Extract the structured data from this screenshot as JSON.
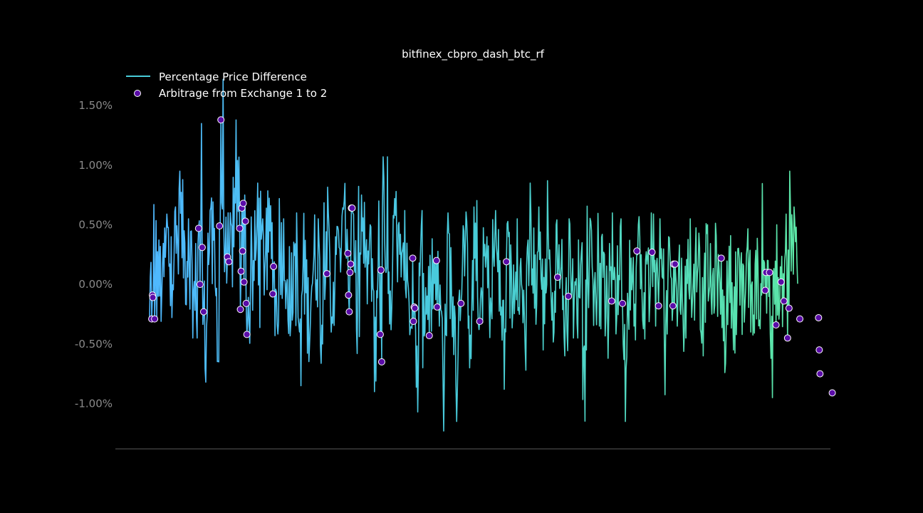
{
  "chart_data": {
    "type": "line",
    "title": "bitfinex_cbpro_dash_btc_rf",
    "xlabel": "",
    "ylabel": "",
    "ylim": [
      -1.38,
      1.77
    ],
    "y_ticks": [
      -1.0,
      -0.5,
      0.0,
      0.5,
      1.0,
      1.5
    ],
    "y_tick_labels": [
      "-1.00%",
      "-0.50%",
      "0.00%",
      "0.50%",
      "1.00%",
      "1.50%"
    ],
    "grid": false,
    "legend_position": "top-left",
    "legend": [
      "Percentage Price Difference",
      "Arbitrage from Exchange 1 to 2"
    ],
    "colors": {
      "background": "#000000",
      "line_start": "#4fb8ff",
      "line_mid": "#48ccd8",
      "line_end": "#5ce6a6",
      "marker_fill": "#5a0ca8",
      "marker_edge": "#ffffff",
      "axis": "#5a5a5a",
      "tick_text": "#8a8a8a"
    },
    "series": [
      {
        "name": "Percentage Price Difference",
        "type": "line",
        "n_points": 900,
        "anchor_values": [
          -0.29,
          0.67,
          -0.1,
          0.18,
          0.59,
          0.4,
          0.65,
          0.95,
          0.45,
          0.55,
          -0.45,
          1.35,
          -0.82,
          0.62,
          0.47,
          -0.65,
          1.72,
          0.25,
          0.49,
          1.38,
          1.7,
          0.75,
          -0.32,
          0.2,
          0.85,
          0.46,
          0.64,
          0.66,
          -0.43,
          0.72,
          0.55,
          -0.3,
          0.6,
          -0.85,
          0.37,
          -0.5,
          0.25,
          0.55,
          -0.5,
          1.23,
          -0.4,
          0.4,
          0.3,
          0.7,
          1.55,
          0.6,
          -0.58,
          0.75,
          0.27,
          0.5,
          -0.9,
          0.7,
          1.07,
          -0.2,
          0.78,
          0.42,
          0.62,
          -0.15,
          0.15,
          -1.07,
          0.62,
          -0.25,
          0.0,
          0.22,
          -0.35,
          -1.23,
          0.6,
          -0.44,
          -1.15,
          0.8,
          0.35,
          -0.7,
          0.65,
          -0.32,
          0.4,
          -0.2,
          0.62,
          0.2,
          -0.88,
          0.4,
          -0.2,
          0.55,
          0.0,
          -0.72,
          0.85,
          -0.2,
          0.65,
          -0.55,
          0.87,
          -0.3,
          0.5,
          0.06,
          -0.6,
          0.55,
          -0.45,
          0.35,
          -0.55,
          0.53,
          0.1,
          -0.35,
          0.27,
          -0.62,
          0.6,
          -0.28,
          0.55,
          -1.15,
          0.37,
          -0.35,
          0.5,
          -0.3,
          0.17,
          0.6,
          -0.35,
          0.55,
          -0.45,
          0.4,
          -0.35,
          0.22,
          -0.45,
          0.55,
          -0.3,
          0.43,
          -0.6,
          0.5,
          -0.25,
          0.41,
          -0.25,
          -0.74,
          0.32,
          -0.55,
          0.3,
          -0.42,
          0.25,
          -0.4,
          0.17,
          -0.3,
          0.2,
          -0.95,
          0.5,
          -0.55,
          0.27,
          0.95,
          0.65,
          0.4
        ]
      },
      {
        "name": "Arbitrage from Exchange 1 to 2",
        "type": "scatter",
        "points_x": [
          3,
          4,
          4.5,
          7,
          68,
          70,
          73,
          75,
          97,
          99,
          108,
          110,
          125,
          126,
          127,
          128,
          129,
          130,
          131,
          133,
          134,
          135,
          171,
          172,
          246,
          275,
          276,
          277,
          278,
          279,
          280,
          281,
          320,
          321,
          322,
          365,
          366,
          367,
          368,
          388,
          398,
          399,
          432,
          458,
          495,
          566,
          581,
          641,
          656,
          676,
          697,
          706,
          726,
          727,
          729,
          793,
          854,
          855,
          860,
          869,
          876,
          880,
          885,
          887,
          902,
          928,
          929,
          930,
          947
        ],
        "points_y": [
          -0.29,
          -0.09,
          -0.11,
          -0.29,
          0.47,
          0.0,
          0.31,
          -0.23,
          0.49,
          1.38,
          0.23,
          0.19,
          0.47,
          -0.21,
          0.11,
          0.64,
          0.28,
          0.68,
          0.02,
          0.53,
          -0.16,
          -0.42,
          -0.08,
          0.15,
          0.09,
          0.26,
          -0.09,
          -0.23,
          0.1,
          0.17,
          0.64,
          0.64,
          -0.42,
          0.12,
          -0.65,
          0.22,
          -0.31,
          -0.19,
          -0.2,
          -0.43,
          0.2,
          -0.19,
          -0.16,
          -0.31,
          0.19,
          0.06,
          -0.1,
          -0.14,
          -0.16,
          0.28,
          0.27,
          -0.18,
          -0.18,
          0.17,
          0.17,
          0.22,
          -0.05,
          0.1,
          0.1,
          -0.34,
          0.02,
          -0.14,
          -0.45,
          -0.2,
          -0.29,
          -0.28,
          -0.55,
          -0.75,
          -0.91
        ]
      }
    ]
  }
}
